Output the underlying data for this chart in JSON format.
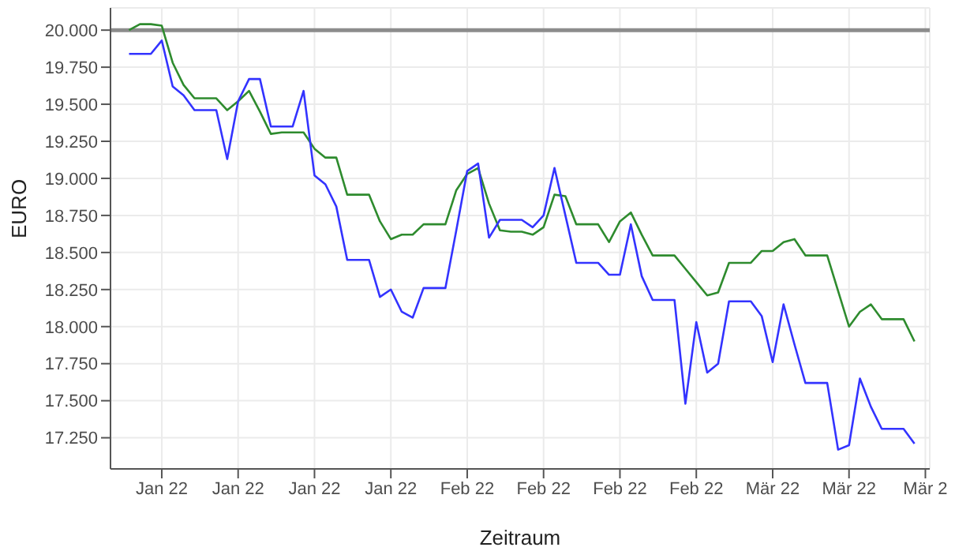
{
  "chart_data": {
    "type": "line",
    "xlabel": "Zeitraum",
    "ylabel": "EURO",
    "categories": [
      null,
      null,
      null,
      "Jan 22",
      null,
      null,
      null,
      null,
      null,
      null,
      "Jan 22",
      null,
      null,
      null,
      null,
      null,
      null,
      "Jan 22",
      null,
      null,
      null,
      null,
      null,
      null,
      "Jan 22",
      null,
      null,
      null,
      null,
      null,
      null,
      "Feb 22",
      null,
      null,
      null,
      null,
      null,
      null,
      "Feb 22",
      null,
      null,
      null,
      null,
      null,
      null,
      "Feb 22",
      null,
      null,
      null,
      null,
      null,
      null,
      "Feb 22",
      null,
      null,
      null,
      null,
      null,
      null,
      "Mär 22",
      null,
      null,
      null,
      null,
      null,
      null,
      "Mär 22",
      null,
      null,
      null,
      null,
      null,
      null,
      "Mär 2"
    ],
    "series": [
      {
        "color": "#2e8b2e",
        "values": [
          20000,
          20040,
          20040,
          20030,
          19780,
          19630,
          19540,
          19540,
          19540,
          19460,
          19520,
          19590,
          19450,
          19300,
          19310,
          19310,
          19310,
          19200,
          19140,
          19140,
          18890,
          18890,
          18890,
          18710,
          18590,
          18620,
          18620,
          18690,
          18690,
          18690,
          18920,
          19030,
          19070,
          18830,
          18650,
          18640,
          18640,
          18620,
          18670,
          18890,
          18880,
          18690,
          18690,
          18690,
          18570,
          18710,
          18770,
          18620,
          18480,
          18480,
          18480,
          18390,
          18300,
          18210,
          18230,
          18430,
          18430,
          18430,
          18510,
          18510,
          18570,
          18590,
          18480,
          18480,
          18480,
          18240,
          18000,
          18100,
          18150,
          18050,
          18050,
          18050,
          17900,
          null
        ]
      },
      {
        "color": "#3333ff",
        "values": [
          19840,
          19840,
          19840,
          19930,
          19620,
          19560,
          19460,
          19460,
          19460,
          19130,
          19520,
          19670,
          19670,
          19350,
          19350,
          19350,
          19590,
          19020,
          18960,
          18810,
          18450,
          18450,
          18450,
          18200,
          18250,
          18100,
          18060,
          18260,
          18260,
          18260,
          18650,
          19050,
          19100,
          18600,
          18720,
          18720,
          18720,
          18670,
          18750,
          19070,
          18750,
          18430,
          18430,
          18430,
          18350,
          18350,
          18690,
          18340,
          18180,
          18180,
          18180,
          17480,
          18030,
          17690,
          17750,
          18170,
          18170,
          18170,
          18070,
          17760,
          18150,
          17880,
          17620,
          17620,
          17620,
          17170,
          17200,
          17650,
          17460,
          17310,
          17310,
          17310,
          17210,
          null
        ]
      }
    ],
    "ylim": [
      17040,
      20150
    ],
    "yticks": [
      {
        "value": 17250,
        "label": "17.250"
      },
      {
        "value": 17500,
        "label": "17.500"
      },
      {
        "value": 17750,
        "label": "17.750"
      },
      {
        "value": 18000,
        "label": "18.000"
      },
      {
        "value": 18250,
        "label": "18.250"
      },
      {
        "value": 18500,
        "label": "18.500"
      },
      {
        "value": 18750,
        "label": "18.750"
      },
      {
        "value": 19000,
        "label": "19.000"
      },
      {
        "value": 19250,
        "label": "19.250"
      },
      {
        "value": 19500,
        "label": "19.500"
      },
      {
        "value": 19750,
        "label": "19.750"
      },
      {
        "value": 20000,
        "label": "20.000"
      }
    ],
    "ref_lines": [
      {
        "axis": "y",
        "value": 20000,
        "color": "#8c8c8c"
      }
    ],
    "grid": true,
    "marker": "none",
    "line_style": "solid"
  }
}
